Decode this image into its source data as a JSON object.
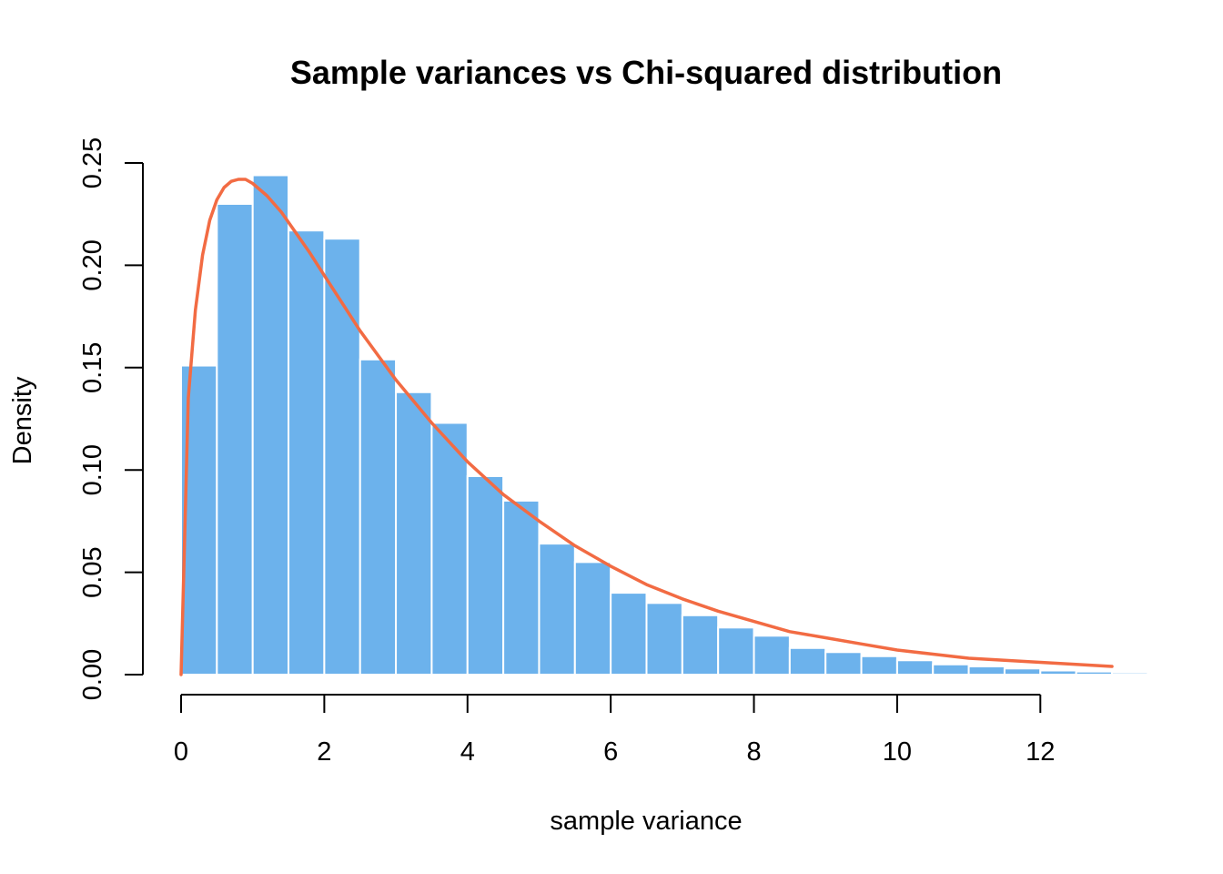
{
  "chart_data": {
    "type": "bar",
    "title": "Sample variances vs Chi-squared distribution",
    "xlabel": "sample variance",
    "ylabel": "Density",
    "xlim": [
      0,
      13.5
    ],
    "ylim": [
      0,
      0.25
    ],
    "x_ticks": [
      "0",
      "2",
      "4",
      "6",
      "8",
      "10",
      "12"
    ],
    "y_ticks": [
      "0.00",
      "0.05",
      "0.10",
      "0.15",
      "0.20",
      "0.25"
    ],
    "bin_width": 0.5,
    "bins": [
      {
        "start": 0.0,
        "end": 0.5,
        "density": 0.151
      },
      {
        "start": 0.5,
        "end": 1.0,
        "density": 0.23
      },
      {
        "start": 1.0,
        "end": 1.5,
        "density": 0.244
      },
      {
        "start": 1.5,
        "end": 2.0,
        "density": 0.217
      },
      {
        "start": 2.0,
        "end": 2.5,
        "density": 0.213
      },
      {
        "start": 2.5,
        "end": 3.0,
        "density": 0.154
      },
      {
        "start": 3.0,
        "end": 3.5,
        "density": 0.138
      },
      {
        "start": 3.5,
        "end": 4.0,
        "density": 0.123
      },
      {
        "start": 4.0,
        "end": 4.5,
        "density": 0.097
      },
      {
        "start": 4.5,
        "end": 5.0,
        "density": 0.085
      },
      {
        "start": 5.0,
        "end": 5.5,
        "density": 0.064
      },
      {
        "start": 5.5,
        "end": 6.0,
        "density": 0.055
      },
      {
        "start": 6.0,
        "end": 6.5,
        "density": 0.04
      },
      {
        "start": 6.5,
        "end": 7.0,
        "density": 0.035
      },
      {
        "start": 7.0,
        "end": 7.5,
        "density": 0.029
      },
      {
        "start": 7.5,
        "end": 8.0,
        "density": 0.023
      },
      {
        "start": 8.0,
        "end": 8.5,
        "density": 0.019
      },
      {
        "start": 8.5,
        "end": 9.0,
        "density": 0.013
      },
      {
        "start": 9.0,
        "end": 9.5,
        "density": 0.011
      },
      {
        "start": 9.5,
        "end": 10.0,
        "density": 0.009
      },
      {
        "start": 10.0,
        "end": 10.5,
        "density": 0.007
      },
      {
        "start": 10.5,
        "end": 11.0,
        "density": 0.005
      },
      {
        "start": 11.0,
        "end": 11.5,
        "density": 0.004
      },
      {
        "start": 11.5,
        "end": 12.0,
        "density": 0.003
      },
      {
        "start": 12.0,
        "end": 12.5,
        "density": 0.002
      },
      {
        "start": 12.5,
        "end": 13.0,
        "density": 0.0015
      },
      {
        "start": 13.0,
        "end": 13.5,
        "density": 0.001
      }
    ],
    "curve": {
      "type": "line",
      "x": [
        0,
        0.1,
        0.2,
        0.3,
        0.4,
        0.5,
        0.6,
        0.7,
        0.8,
        0.9,
        1.0,
        1.2,
        1.4,
        1.6,
        1.8,
        2.0,
        2.5,
        3.0,
        3.5,
        4.0,
        4.5,
        5.0,
        5.5,
        6.0,
        6.5,
        7.0,
        7.5,
        8.0,
        8.5,
        9.0,
        9.5,
        10.0,
        10.5,
        11.0,
        11.5,
        12.0,
        12.5,
        13.0
      ],
      "y": [
        0,
        0.135,
        0.178,
        0.205,
        0.222,
        0.232,
        0.238,
        0.241,
        0.242,
        0.242,
        0.24,
        0.234,
        0.226,
        0.216,
        0.206,
        0.195,
        0.168,
        0.144,
        0.123,
        0.104,
        0.088,
        0.075,
        0.063,
        0.053,
        0.044,
        0.037,
        0.031,
        0.026,
        0.021,
        0.018,
        0.015,
        0.012,
        0.01,
        0.008,
        0.007,
        0.006,
        0.005,
        0.004
      ]
    },
    "colors": {
      "bars": "#6cb2ec",
      "bar_border": "#ffffff",
      "curve": "#f26b43",
      "axis": "#000000"
    }
  }
}
